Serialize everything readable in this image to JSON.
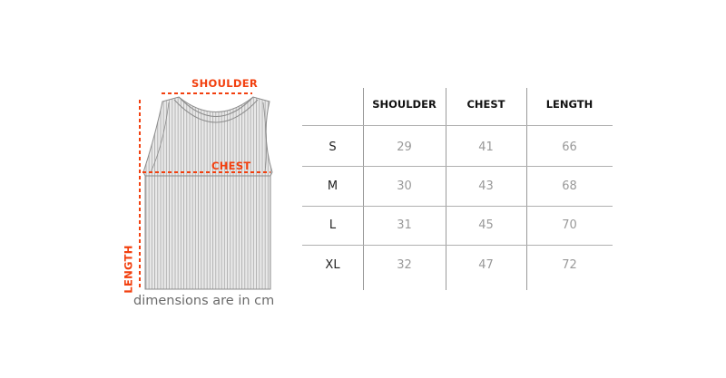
{
  "diagram": {
    "shoulder_label": "SHOULDER",
    "chest_label": "CHEST",
    "length_label": "LENGTH",
    "caption": "dimensions are in cm",
    "accent_color": "#f2400f"
  },
  "table": {
    "headers": [
      "SHOULDER",
      "CHEST",
      "LENGTH"
    ],
    "rows": [
      {
        "size": "S",
        "values": [
          "29",
          "41",
          "66"
        ]
      },
      {
        "size": "M",
        "values": [
          "30",
          "43",
          "68"
        ]
      },
      {
        "size": "L",
        "values": [
          "31",
          "45",
          "70"
        ]
      },
      {
        "size": "XL",
        "values": [
          "32",
          "47",
          "72"
        ]
      }
    ]
  }
}
